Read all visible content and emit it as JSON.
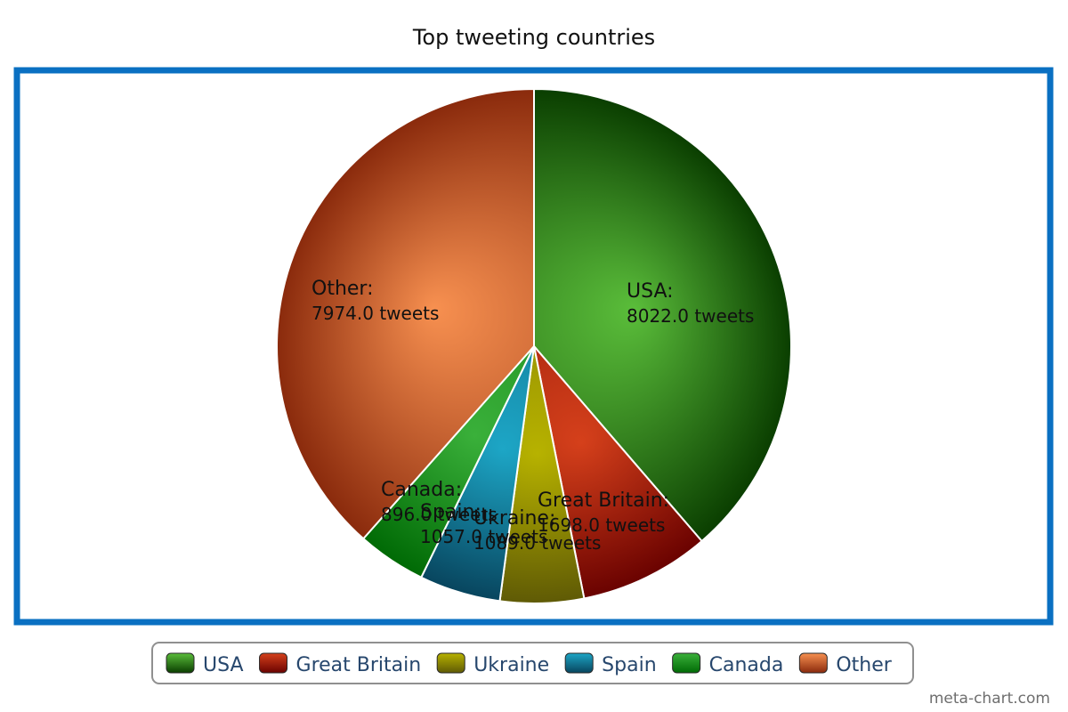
{
  "credit": "meta-chart.com",
  "colors": {
    "frame": "#0a70c2",
    "legend_border": "#909090",
    "legend_text": "#27476d"
  },
  "chart_data": {
    "type": "pie",
    "title": "Top tweeting countries",
    "unit_suffix": "tweets",
    "start_angle_deg": 0,
    "direction": "clockwise",
    "legend_position": "bottom",
    "slices": [
      {
        "label": "USA",
        "value": 8022.0,
        "value_text": "8022.0 tweets",
        "color_light": "#5abd3a",
        "color_dark": "#0a3e00"
      },
      {
        "label": "Great Britain",
        "value": 1698.0,
        "value_text": "1698.0 tweets",
        "color_light": "#d5401b",
        "color_dark": "#6a0200"
      },
      {
        "label": "Ukraine",
        "value": 1089.0,
        "value_text": "1089.0 tweets",
        "color_light": "#b7b200",
        "color_dark": "#5f5a05"
      },
      {
        "label": "Spain",
        "value": 1057.0,
        "value_text": "1057.0 tweets",
        "color_light": "#1da6c6",
        "color_dark": "#08455e"
      },
      {
        "label": "Canada",
        "value": 896.0,
        "value_text": "896.0 tweets",
        "color_light": "#3ab03a",
        "color_dark": "#006a05"
      },
      {
        "label": "Other",
        "value": 7974.0,
        "value_text": "7974.0 tweets",
        "color_light": "#f79050",
        "color_dark": "#8a2a0c"
      }
    ]
  }
}
